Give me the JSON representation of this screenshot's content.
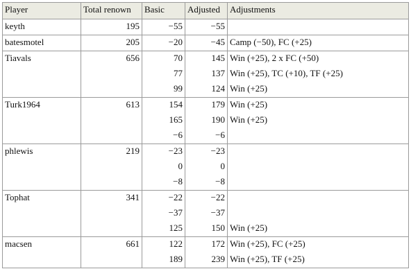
{
  "table": {
    "header": [
      "Player",
      "Total renown",
      "Basic",
      "Adjusted",
      "Adjustments"
    ],
    "players": [
      {
        "name": "keyth",
        "total": "195",
        "rows": [
          [
            "−55",
            "−55",
            ""
          ]
        ]
      },
      {
        "name": "batesmotel",
        "total": "205",
        "rows": [
          [
            "−20",
            "−45",
            "Camp (−50), FC (+25)"
          ]
        ]
      },
      {
        "name": "Tiavals",
        "total": "656",
        "rows": [
          [
            "70",
            "145",
            "Win (+25), 2 x FC (+50)"
          ],
          [
            "77",
            "137",
            "Win (+25), TC (+10), TF (+25)"
          ],
          [
            "99",
            "124",
            "Win (+25)"
          ]
        ]
      },
      {
        "name": "Turk1964",
        "total": "613",
        "rows": [
          [
            "154",
            "179",
            "Win (+25)"
          ],
          [
            "165",
            "190",
            "Win (+25)"
          ],
          [
            "−6",
            "−6",
            ""
          ]
        ]
      },
      {
        "name": "phlewis",
        "total": "219",
        "rows": [
          [
            "−23",
            "−23",
            ""
          ],
          [
            "0",
            "0",
            ""
          ],
          [
            "−8",
            "−8",
            ""
          ]
        ]
      },
      {
        "name": "Tophat",
        "total": "341",
        "rows": [
          [
            "−22",
            "−22",
            ""
          ],
          [
            "−37",
            "−37",
            ""
          ],
          [
            "125",
            "150",
            "Win (+25)"
          ]
        ]
      },
      {
        "name": "macsen",
        "total": "661",
        "rows": [
          [
            "122",
            "172",
            "Win (+25), FC (+25)"
          ],
          [
            "189",
            "239",
            "Win (+25), TF (+25)"
          ]
        ]
      }
    ]
  }
}
